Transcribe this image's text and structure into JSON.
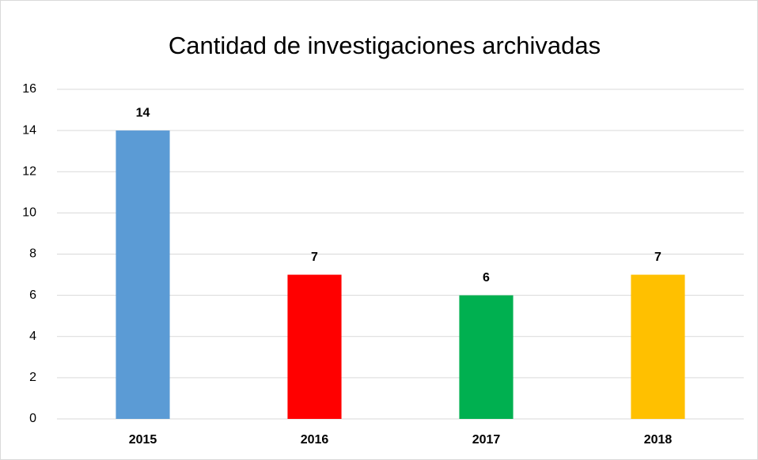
{
  "chart_data": {
    "type": "bar",
    "title": "Cantidad de investigaciones archivadas",
    "categories": [
      "2015",
      "2016",
      "2017",
      "2018"
    ],
    "values": [
      14,
      7,
      6,
      7
    ],
    "colors": [
      "#5b9bd5",
      "#ff0000",
      "#00b050",
      "#ffc000"
    ],
    "ylim": [
      0,
      16
    ],
    "yticks": [
      0,
      2,
      4,
      6,
      8,
      10,
      12,
      14,
      16
    ],
    "grid": true
  }
}
